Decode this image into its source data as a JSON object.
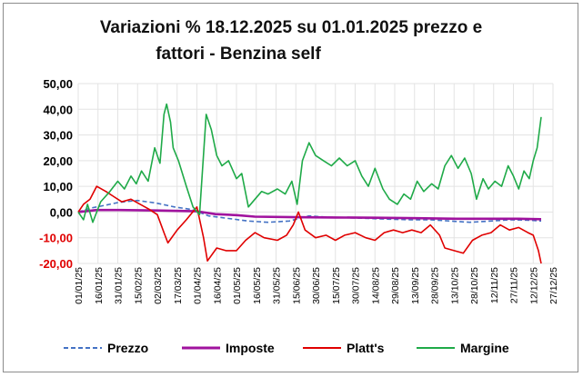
{
  "chart_data": {
    "type": "line",
    "title_lines": [
      "Variazioni % 18.12.2025 su 01.01.2025 prezzo e",
      "fattori - Benzina self"
    ],
    "ylim": [
      -20,
      50
    ],
    "yticks": [
      "50,00",
      "40,00",
      "30,00",
      "20,00",
      "10,00",
      "0,00",
      "-10,00",
      "-20,00"
    ],
    "ytick_values": [
      50,
      40,
      30,
      20,
      10,
      0,
      -10,
      -20
    ],
    "xlim": [
      "2025-01-01",
      "2025-12-27"
    ],
    "xticks": [
      "01/01/25",
      "16/01/25",
      "31/01/25",
      "15/02/25",
      "02/03/25",
      "17/03/25",
      "01/04/25",
      "16/04/25",
      "01/05/25",
      "16/05/25",
      "31/05/25",
      "15/06/25",
      "30/06/25",
      "15/07/25",
      "30/07/25",
      "14/08/25",
      "29/08/25",
      "13/09/25",
      "28/09/25",
      "13/10/25",
      "28/10/25",
      "12/11/25",
      "27/11/25",
      "12/12/25",
      "27/12/25"
    ],
    "grid": true,
    "legend_position": "bottom",
    "series": [
      {
        "name": "Prezzo",
        "color": "#4472c4",
        "dash": "dashed",
        "points": [
          [
            "2025-01-01",
            0
          ],
          [
            "2025-01-10",
            1.5
          ],
          [
            "2025-01-20",
            2.5
          ],
          [
            "2025-02-01",
            3.8
          ],
          [
            "2025-02-15",
            4.5
          ],
          [
            "2025-03-01",
            3.5
          ],
          [
            "2025-03-15",
            2.0
          ],
          [
            "2025-03-28",
            1.0
          ],
          [
            "2025-04-10",
            -1.5
          ],
          [
            "2025-04-25",
            -2.5
          ],
          [
            "2025-05-10",
            -3.5
          ],
          [
            "2025-05-25",
            -4.0
          ],
          [
            "2025-06-10",
            -3.5
          ],
          [
            "2025-06-25",
            -1.5
          ],
          [
            "2025-07-10",
            -2.0
          ],
          [
            "2025-07-25",
            -2.2
          ],
          [
            "2025-08-10",
            -2.5
          ],
          [
            "2025-08-25",
            -2.8
          ],
          [
            "2025-09-10",
            -3.0
          ],
          [
            "2025-09-25",
            -3.0
          ],
          [
            "2025-10-10",
            -3.5
          ],
          [
            "2025-10-25",
            -4.0
          ],
          [
            "2025-11-10",
            -3.5
          ],
          [
            "2025-11-25",
            -3.0
          ],
          [
            "2025-12-10",
            -3.2
          ],
          [
            "2025-12-18",
            -3.5
          ]
        ]
      },
      {
        "name": "Imposte",
        "color": "#a0129e",
        "dash": "solid",
        "points": [
          [
            "2025-01-01",
            0
          ],
          [
            "2025-01-15",
            0.8
          ],
          [
            "2025-02-01",
            0.8
          ],
          [
            "2025-03-01",
            0.6
          ],
          [
            "2025-04-01",
            0.3
          ],
          [
            "2025-04-15",
            -0.8
          ],
          [
            "2025-05-01",
            -1.2
          ],
          [
            "2025-05-15",
            -1.8
          ],
          [
            "2025-06-15",
            -2.0
          ],
          [
            "2025-07-15",
            -2.1
          ],
          [
            "2025-08-15",
            -2.2
          ],
          [
            "2025-09-15",
            -2.4
          ],
          [
            "2025-10-15",
            -2.6
          ],
          [
            "2025-11-15",
            -2.6
          ],
          [
            "2025-12-01",
            -2.6
          ],
          [
            "2025-12-18",
            -2.8
          ]
        ]
      },
      {
        "name": "Platt's",
        "color": "#e00000",
        "dash": "solid",
        "points": [
          [
            "2025-01-01",
            0
          ],
          [
            "2025-01-05",
            3
          ],
          [
            "2025-01-10",
            5
          ],
          [
            "2025-01-15",
            10
          ],
          [
            "2025-01-22",
            8
          ],
          [
            "2025-01-28",
            6
          ],
          [
            "2025-02-03",
            4
          ],
          [
            "2025-02-10",
            5
          ],
          [
            "2025-02-17",
            3
          ],
          [
            "2025-02-24",
            1
          ],
          [
            "2025-03-02",
            -1
          ],
          [
            "2025-03-07",
            -8
          ],
          [
            "2025-03-10",
            -12
          ],
          [
            "2025-03-17",
            -7
          ],
          [
            "2025-03-24",
            -3
          ],
          [
            "2025-04-01",
            2
          ],
          [
            "2025-04-06",
            -10
          ],
          [
            "2025-04-09",
            -19
          ],
          [
            "2025-04-16",
            -14
          ],
          [
            "2025-04-23",
            -15
          ],
          [
            "2025-05-01",
            -15
          ],
          [
            "2025-05-08",
            -11
          ],
          [
            "2025-05-15",
            -8
          ],
          [
            "2025-05-22",
            -10
          ],
          [
            "2025-06-01",
            -11
          ],
          [
            "2025-06-08",
            -9
          ],
          [
            "2025-06-13",
            -5
          ],
          [
            "2025-06-17",
            0
          ],
          [
            "2025-06-22",
            -7
          ],
          [
            "2025-06-30",
            -10
          ],
          [
            "2025-07-08",
            -9
          ],
          [
            "2025-07-15",
            -11
          ],
          [
            "2025-07-22",
            -9
          ],
          [
            "2025-07-30",
            -8
          ],
          [
            "2025-08-07",
            -10
          ],
          [
            "2025-08-14",
            -11
          ],
          [
            "2025-08-21",
            -8
          ],
          [
            "2025-08-28",
            -7
          ],
          [
            "2025-09-04",
            -8
          ],
          [
            "2025-09-11",
            -7
          ],
          [
            "2025-09-18",
            -8
          ],
          [
            "2025-09-25",
            -5
          ],
          [
            "2025-10-02",
            -9
          ],
          [
            "2025-10-06",
            -14
          ],
          [
            "2025-10-13",
            -15
          ],
          [
            "2025-10-20",
            -16
          ],
          [
            "2025-10-27",
            -11
          ],
          [
            "2025-11-03",
            -9
          ],
          [
            "2025-11-10",
            -8
          ],
          [
            "2025-11-17",
            -5
          ],
          [
            "2025-11-24",
            -7
          ],
          [
            "2025-12-01",
            -6
          ],
          [
            "2025-12-08",
            -8
          ],
          [
            "2025-12-12",
            -9
          ],
          [
            "2025-12-16",
            -15
          ],
          [
            "2025-12-18",
            -20
          ]
        ]
      },
      {
        "name": "Margine",
        "color": "#1faa48",
        "dash": "solid",
        "points": [
          [
            "2025-01-01",
            0
          ],
          [
            "2025-01-05",
            -3
          ],
          [
            "2025-01-08",
            3
          ],
          [
            "2025-01-12",
            -4
          ],
          [
            "2025-01-18",
            4
          ],
          [
            "2025-01-25",
            8
          ],
          [
            "2025-01-31",
            12
          ],
          [
            "2025-02-05",
            9
          ],
          [
            "2025-02-10",
            14
          ],
          [
            "2025-02-14",
            11
          ],
          [
            "2025-02-18",
            16
          ],
          [
            "2025-02-23",
            12
          ],
          [
            "2025-02-28",
            25
          ],
          [
            "2025-03-04",
            19
          ],
          [
            "2025-03-07",
            38
          ],
          [
            "2025-03-09",
            42
          ],
          [
            "2025-03-12",
            35
          ],
          [
            "2025-03-14",
            25
          ],
          [
            "2025-03-18",
            20
          ],
          [
            "2025-03-24",
            10
          ],
          [
            "2025-03-29",
            2
          ],
          [
            "2025-04-03",
            -1
          ],
          [
            "2025-04-08",
            38
          ],
          [
            "2025-04-12",
            32
          ],
          [
            "2025-04-16",
            22
          ],
          [
            "2025-04-20",
            18
          ],
          [
            "2025-04-25",
            20
          ],
          [
            "2025-05-01",
            13
          ],
          [
            "2025-05-05",
            15
          ],
          [
            "2025-05-10",
            2
          ],
          [
            "2025-05-15",
            5
          ],
          [
            "2025-05-20",
            8
          ],
          [
            "2025-05-25",
            7
          ],
          [
            "2025-06-01",
            9
          ],
          [
            "2025-06-07",
            7
          ],
          [
            "2025-06-12",
            12
          ],
          [
            "2025-06-16",
            3
          ],
          [
            "2025-06-20",
            20
          ],
          [
            "2025-06-25",
            27
          ],
          [
            "2025-06-30",
            22
          ],
          [
            "2025-07-06",
            20
          ],
          [
            "2025-07-12",
            18
          ],
          [
            "2025-07-18",
            21
          ],
          [
            "2025-07-24",
            18
          ],
          [
            "2025-07-30",
            20
          ],
          [
            "2025-08-04",
            14
          ],
          [
            "2025-08-09",
            10
          ],
          [
            "2025-08-14",
            17
          ],
          [
            "2025-08-20",
            9
          ],
          [
            "2025-08-25",
            5
          ],
          [
            "2025-08-31",
            3
          ],
          [
            "2025-09-05",
            7
          ],
          [
            "2025-09-10",
            5
          ],
          [
            "2025-09-15",
            12
          ],
          [
            "2025-09-20",
            8
          ],
          [
            "2025-09-26",
            11
          ],
          [
            "2025-10-01",
            9
          ],
          [
            "2025-10-06",
            18
          ],
          [
            "2025-10-11",
            22
          ],
          [
            "2025-10-16",
            17
          ],
          [
            "2025-10-21",
            21
          ],
          [
            "2025-10-26",
            15
          ],
          [
            "2025-10-30",
            5
          ],
          [
            "2025-11-04",
            13
          ],
          [
            "2025-11-08",
            9
          ],
          [
            "2025-11-13",
            12
          ],
          [
            "2025-11-18",
            10
          ],
          [
            "2025-11-23",
            18
          ],
          [
            "2025-11-27",
            14
          ],
          [
            "2025-12-01",
            9
          ],
          [
            "2025-12-05",
            16
          ],
          [
            "2025-12-09",
            13
          ],
          [
            "2025-12-12",
            20
          ],
          [
            "2025-12-15",
            25
          ],
          [
            "2025-12-18",
            37
          ]
        ]
      }
    ]
  }
}
